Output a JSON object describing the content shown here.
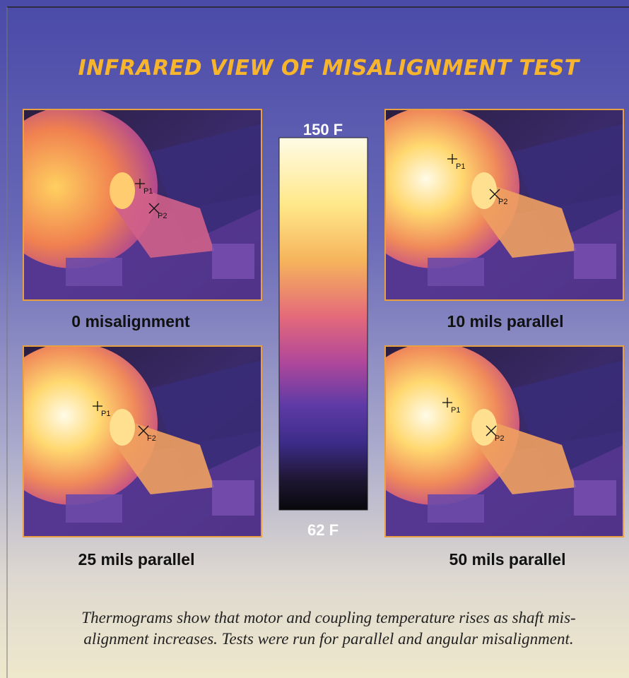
{
  "title": "INFRARED VIEW OF MISALIGNMENT TEST",
  "scale": {
    "max": "150 F",
    "min": "62 F"
  },
  "images": [
    {
      "caption": "0 misalignment",
      "markers": [
        "P1",
        "P2"
      ]
    },
    {
      "caption": "10 mils parallel",
      "markers": [
        "P1",
        "P2"
      ]
    },
    {
      "caption": "25 mils parallel",
      "markers": [
        "P1",
        "F2"
      ]
    },
    {
      "caption": "50 mils parallel",
      "markers": [
        "P1",
        "P2"
      ]
    }
  ],
  "caption_lines": [
    "Thermograms show that motor and coupling temperature rises as shaft mis-",
    "alignment increases. Tests were run for parallel and angular misalignment."
  ]
}
